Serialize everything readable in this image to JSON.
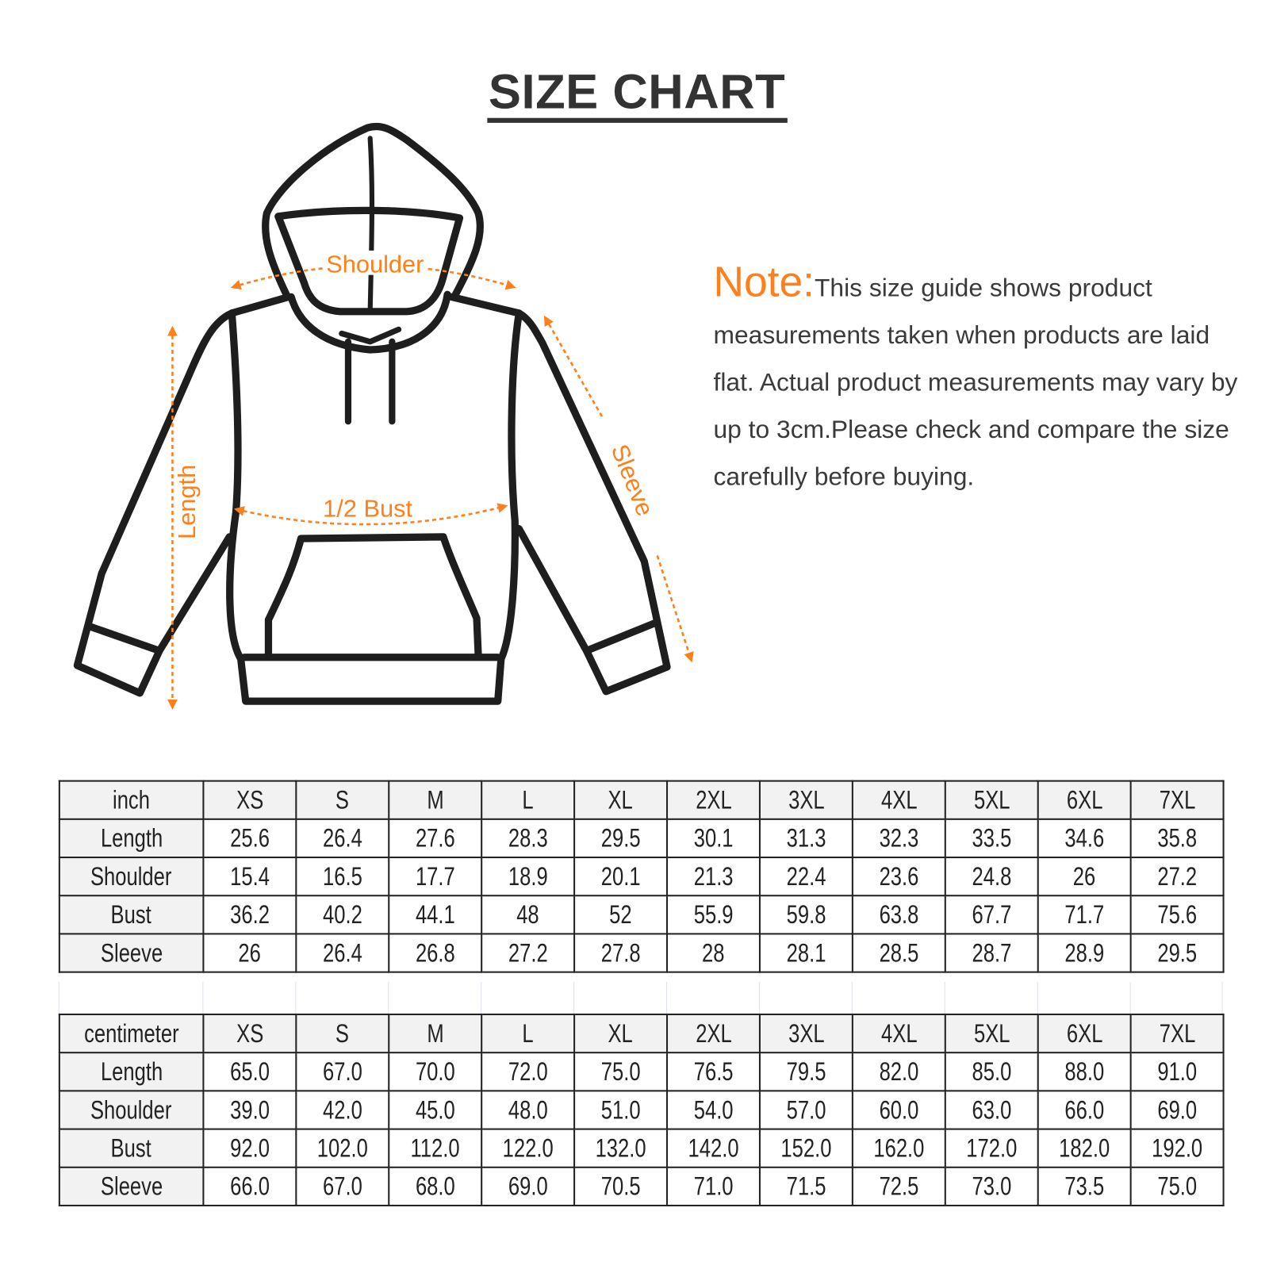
{
  "title": "SIZE CHART",
  "diagram": {
    "labels": {
      "shoulder": "Shoulder",
      "bust": "1/2 Bust",
      "length": "Length",
      "sleeve": "Sleeve"
    },
    "accent_color": "#ff7f1a",
    "outline_color": "#1e1e1e"
  },
  "note": {
    "lead": "Note:",
    "text": "This size guide shows product measurements taken when products are laid flat. Actual product measurements may vary by up to 3cm.Please check and compare the size carefully before buying."
  },
  "sizes": [
    "XS",
    "S",
    "M",
    "L",
    "XL",
    "2XL",
    "3XL",
    "4XL",
    "5XL",
    "6XL",
    "7XL"
  ],
  "inch_table": {
    "unit": "inch",
    "rows": [
      {
        "label": "Length",
        "values": [
          "25.6",
          "26.4",
          "27.6",
          "28.3",
          "29.5",
          "30.1",
          "31.3",
          "32.3",
          "33.5",
          "34.6",
          "35.8"
        ]
      },
      {
        "label": "Shoulder",
        "values": [
          "15.4",
          "16.5",
          "17.7",
          "18.9",
          "20.1",
          "21.3",
          "22.4",
          "23.6",
          "24.8",
          "26",
          "27.2"
        ]
      },
      {
        "label": "Bust",
        "values": [
          "36.2",
          "40.2",
          "44.1",
          "48",
          "52",
          "55.9",
          "59.8",
          "63.8",
          "67.7",
          "71.7",
          "75.6"
        ]
      },
      {
        "label": "Sleeve",
        "values": [
          "26",
          "26.4",
          "26.8",
          "27.2",
          "27.8",
          "28",
          "28.1",
          "28.5",
          "28.7",
          "28.9",
          "29.5"
        ]
      }
    ]
  },
  "cm_table": {
    "unit": "centimeter",
    "rows": [
      {
        "label": "Length",
        "values": [
          "65.0",
          "67.0",
          "70.0",
          "72.0",
          "75.0",
          "76.5",
          "79.5",
          "82.0",
          "85.0",
          "88.0",
          "91.0"
        ]
      },
      {
        "label": "Shoulder",
        "values": [
          "39.0",
          "42.0",
          "45.0",
          "48.0",
          "51.0",
          "54.0",
          "57.0",
          "60.0",
          "63.0",
          "66.0",
          "69.0"
        ]
      },
      {
        "label": "Bust",
        "values": [
          "92.0",
          "102.0",
          "112.0",
          "122.0",
          "132.0",
          "142.0",
          "152.0",
          "162.0",
          "172.0",
          "182.0",
          "192.0"
        ]
      },
      {
        "label": "Sleeve",
        "values": [
          "66.0",
          "67.0",
          "68.0",
          "69.0",
          "70.5",
          "71.0",
          "71.5",
          "72.5",
          "73.0",
          "73.5",
          "75.0"
        ]
      }
    ]
  }
}
